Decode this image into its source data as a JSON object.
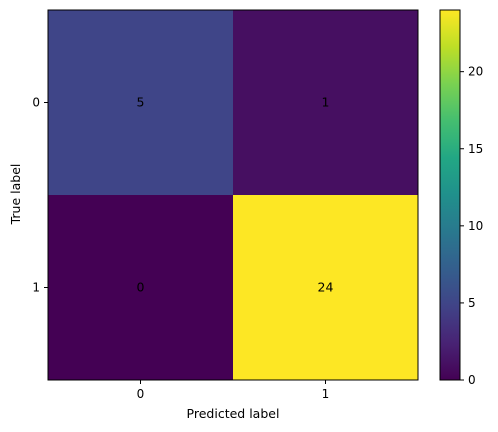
{
  "chart_data": {
    "type": "heatmap",
    "title": "",
    "xlabel": "Predicted label",
    "ylabel": "True label",
    "x_categories": [
      "0",
      "1"
    ],
    "y_categories": [
      "0",
      "1"
    ],
    "matrix": [
      [
        5,
        1
      ],
      [
        0,
        24
      ]
    ],
    "colormap": "viridis",
    "value_range": [
      0,
      24
    ],
    "colorbar_ticks": [
      0,
      5,
      10,
      15,
      20
    ],
    "grid": false,
    "text_colors": {
      "on_dark": "#fde725",
      "on_light": "#440154"
    }
  }
}
